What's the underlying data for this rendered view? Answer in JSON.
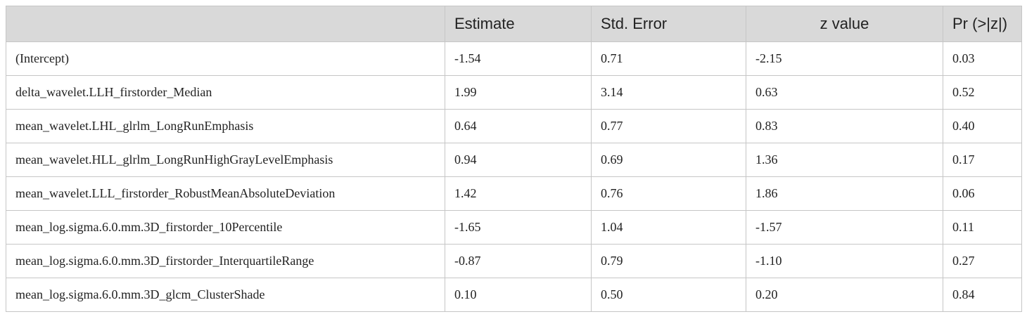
{
  "table": {
    "headers": [
      "",
      "Estimate",
      "Std. Error",
      "z value",
      "Pr (>|z|)"
    ],
    "rows": [
      [
        "(Intercept)",
        "-1.54",
        "0.71",
        "-2.15",
        "0.03"
      ],
      [
        "delta_wavelet.LLH_firstorder_Median",
        "1.99",
        "3.14",
        "0.63",
        "0.52"
      ],
      [
        "mean_wavelet.LHL_glrlm_LongRunEmphasis",
        "0.64",
        "0.77",
        "0.83",
        "0.40"
      ],
      [
        "mean_wavelet.HLL_glrlm_LongRunHighGrayLevelEmphasis",
        "0.94",
        "0.69",
        "1.36",
        "0.17"
      ],
      [
        "mean_wavelet.LLL_firstorder_RobustMeanAbsoluteDeviation",
        "1.42",
        "0.76",
        "1.86",
        "0.06"
      ],
      [
        "mean_log.sigma.6.0.mm.3D_firstorder_10Percentile",
        "-1.65",
        "1.04",
        "-1.57",
        "0.11"
      ],
      [
        "mean_log.sigma.6.0.mm.3D_firstorder_InterquartileRange",
        "-0.87",
        "0.79",
        "-1.10",
        "0.27"
      ],
      [
        "mean_log.sigma.6.0.mm.3D_glcm_ClusterShade",
        "0.10",
        "0.50",
        "0.20",
        "0.84"
      ]
    ]
  }
}
